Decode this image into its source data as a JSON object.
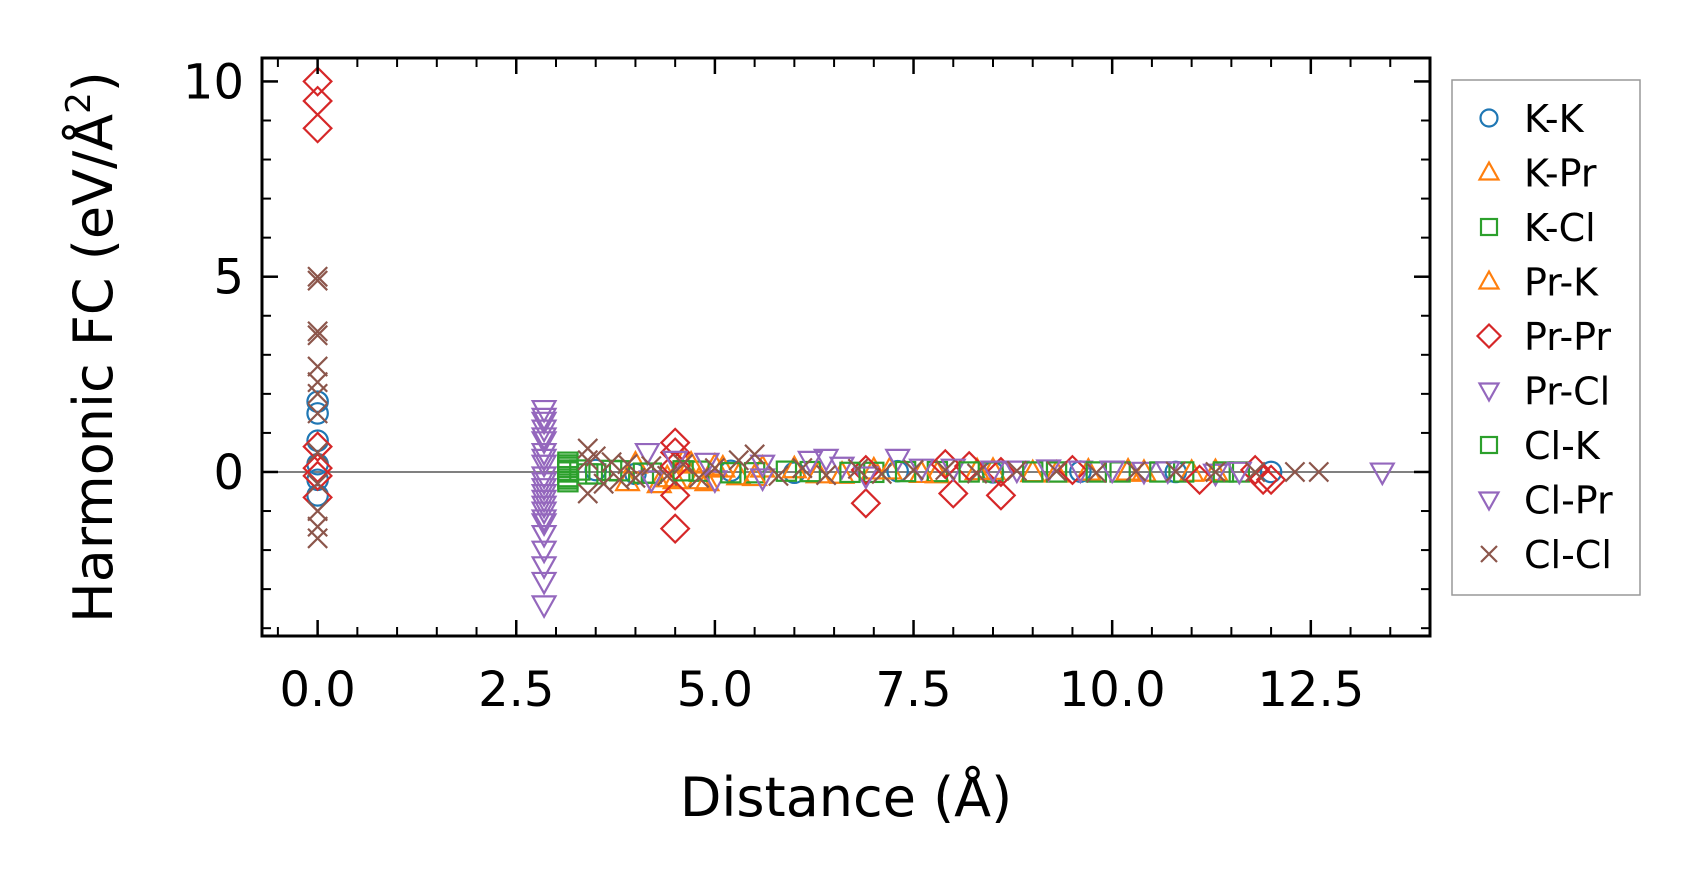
{
  "chart_data": {
    "type": "scatter",
    "xlabel": "Distance (Å)",
    "ylabel_main": "Harmonic FC (eV/Å",
    "ylabel_sup": "2",
    "ylabel_close": ")",
    "xlim": [
      -0.7,
      14.0
    ],
    "ylim": [
      -4.2,
      10.6
    ],
    "xticks": [
      0.0,
      2.5,
      5.0,
      7.5,
      10.0,
      12.5
    ],
    "xtick_labels": [
      "0.0",
      "2.5",
      "5.0",
      "7.5",
      "10.0",
      "12.5"
    ],
    "yticks": [
      0,
      5,
      10
    ],
    "ytick_labels": [
      "0",
      "5",
      "10"
    ],
    "hline_y": 0,
    "legend_position": "right, outside",
    "series": [
      {
        "name": "K-K",
        "marker": "circle",
        "color": "#1f77b4",
        "x": [
          0,
          0,
          0,
          0,
          0,
          0,
          3.5,
          4.0,
          5.2,
          6.0,
          7.3,
          8.5,
          9.6,
          10.8,
          12.0
        ],
        "y": [
          1.8,
          1.5,
          0.8,
          0.2,
          -0.2,
          -0.6,
          0.05,
          -0.05,
          0.03,
          -0.02,
          0.02,
          -0.01,
          0.01,
          0,
          0
        ]
      },
      {
        "name": "K-Pr",
        "marker": "triangle-up",
        "color": "#ff7f0e",
        "x": [
          3.9,
          4.3,
          4.5,
          4.6,
          4.8,
          5.0,
          5.3,
          5.6,
          6.3,
          7.0,
          7.8,
          8.5,
          9.3,
          10.2,
          11.0
        ],
        "y": [
          -0.25,
          -0.3,
          -0.2,
          0.25,
          -0.2,
          0.15,
          -0.1,
          0.1,
          -0.05,
          0.05,
          -0.05,
          0.04,
          -0.03,
          0.02,
          -0.01
        ]
      },
      {
        "name": "K-Cl",
        "marker": "square",
        "color": "#2ca02c",
        "x": [
          3.15,
          3.15,
          3.15,
          3.15,
          3.15,
          3.3,
          3.5,
          3.8,
          4.2,
          4.8,
          5.5,
          6.2,
          7.0,
          7.8,
          8.5,
          9.3,
          10.1,
          10.9,
          11.6
        ],
        "y": [
          0.25,
          0.12,
          0,
          -0.12,
          -0.25,
          0.05,
          -0.05,
          0.03,
          -0.03,
          0.02,
          -0.02,
          0.01,
          -0.01,
          0.01,
          0,
          0,
          0,
          0,
          0
        ]
      },
      {
        "name": "Pr-K",
        "marker": "triangle-up",
        "color": "#ff7f0e",
        "x": [
          4.0,
          4.4,
          4.7,
          4.9,
          5.1,
          5.5,
          6.0,
          6.6,
          7.2,
          7.6,
          8.3,
          9.0,
          9.7,
          10.4,
          11.3
        ],
        "y": [
          0.2,
          -0.15,
          0.2,
          -0.25,
          0.1,
          -0.12,
          0.08,
          -0.06,
          0.05,
          -0.04,
          0.03,
          -0.02,
          0.02,
          -0.01,
          0.01
        ]
      },
      {
        "name": "Pr-Pr",
        "marker": "diamond",
        "color": "#d62728",
        "x": [
          0,
          0,
          0,
          0,
          0,
          0,
          0,
          4.5,
          4.5,
          4.5,
          4.5,
          4.5,
          6.9,
          6.9,
          7.9,
          8.0,
          8.2,
          8.6,
          8.6,
          9.5,
          11.1,
          11.8,
          11.9,
          12.0
        ],
        "y": [
          10.0,
          9.5,
          8.8,
          0.65,
          0.1,
          -0.1,
          -0.65,
          0.75,
          0.5,
          0.15,
          -0.6,
          -1.45,
          0.05,
          -0.8,
          0.2,
          -0.55,
          0.15,
          0.0,
          -0.6,
          0.05,
          -0.2,
          0.05,
          -0.2,
          -0.2
        ]
      },
      {
        "name": "Pr-Cl",
        "marker": "triangle-down",
        "color": "#9467bd",
        "x": [
          2.85,
          2.85,
          2.85,
          2.85,
          2.85,
          2.85,
          2.85,
          2.85,
          2.85,
          2.85,
          2.85,
          2.85,
          2.85,
          2.85,
          2.85,
          2.85,
          4.15,
          4.5,
          5.0,
          5.6,
          6.2,
          6.6,
          6.9,
          7.3,
          8.0,
          8.8,
          9.6,
          10.4,
          11.3
        ],
        "y": [
          1.6,
          1.4,
          1.1,
          0.8,
          0.5,
          0.2,
          -0.1,
          -0.4,
          -0.7,
          -1.0,
          -1.3,
          -1.6,
          -2.0,
          -2.4,
          -2.8,
          -3.4,
          0.5,
          0.3,
          -0.2,
          0.2,
          0.3,
          0.15,
          -0.1,
          0.35,
          0.1,
          0.05,
          0.05,
          0.02,
          -0.03
        ]
      },
      {
        "name": "Cl-K",
        "marker": "square",
        "color": "#2ca02c",
        "x": [
          3.15,
          3.15,
          3.15,
          3.4,
          3.7,
          4.1,
          4.6,
          5.2,
          5.9,
          6.7,
          7.4,
          8.2,
          9.0,
          9.8,
          10.6,
          11.4
        ],
        "y": [
          0.18,
          0.05,
          -0.18,
          -0.05,
          0.04,
          -0.03,
          0.03,
          -0.02,
          0.02,
          -0.01,
          0.01,
          0,
          0,
          0,
          0,
          0
        ]
      },
      {
        "name": "Cl-Pr",
        "marker": "triangle-down",
        "color": "#9467bd",
        "x": [
          2.85,
          2.85,
          2.85,
          2.85,
          2.85,
          2.85,
          2.85,
          4.2,
          4.9,
          5.6,
          6.4,
          7.6,
          8.5,
          9.2,
          10.0,
          10.7,
          11.6,
          13.4
        ],
        "y": [
          1.3,
          0.9,
          0.35,
          -0.25,
          -0.55,
          -0.85,
          -1.2,
          -0.2,
          0.25,
          -0.15,
          0.35,
          0.1,
          0.05,
          0.08,
          0.05,
          0.03,
          0.02,
          0
        ]
      },
      {
        "name": "Cl-Cl",
        "marker": "x",
        "color": "#8c564b",
        "x": [
          0,
          0,
          0,
          0,
          0,
          0,
          0,
          0,
          0,
          0,
          0,
          0,
          0,
          3.4,
          3.4,
          3.4,
          3.5,
          3.6,
          3.7,
          3.8,
          3.9,
          4.0,
          4.2,
          4.4,
          4.6,
          4.8,
          5.0,
          5.3,
          5.5,
          5.8,
          6.1,
          6.4,
          6.8,
          7.1,
          7.5,
          7.9,
          8.3,
          8.8,
          9.3,
          9.8,
          10.3,
          10.8,
          11.3,
          11.8,
          12.3,
          12.6
        ],
        "y": [
          5.0,
          4.9,
          3.6,
          3.5,
          2.7,
          2.3,
          2.0,
          1.5,
          0.5,
          -0.3,
          -1.0,
          -1.4,
          -1.7,
          0.6,
          0.3,
          -0.55,
          0.4,
          -0.3,
          0.25,
          -0.2,
          0.2,
          -0.15,
          0.15,
          -0.1,
          0.2,
          -0.15,
          0.1,
          0.3,
          0.45,
          -0.1,
          0.1,
          -0.08,
          0.08,
          -0.05,
          0.05,
          0.05,
          -0.04,
          0.03,
          0.02,
          -0.02,
          0.02,
          0.01,
          0,
          0,
          0,
          0
        ]
      }
    ]
  }
}
